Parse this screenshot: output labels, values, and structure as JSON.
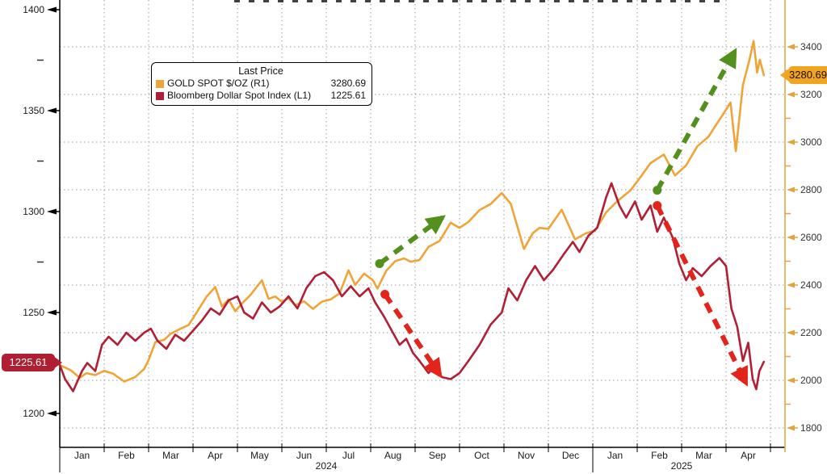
{
  "chart_data": {
    "type": "line",
    "title": "",
    "legend": {
      "title": "Last Price",
      "items": [
        {
          "name": "GOLD SPOT $/OZ  (R1)",
          "last": "3280.69",
          "color": "#F0A437"
        },
        {
          "name": "Bloomberg Dollar Spot Index  (L1)",
          "last": "1225.61",
          "color": "#B01F35"
        }
      ]
    },
    "x_axis": {
      "months": [
        "Jan",
        "Feb",
        "Mar",
        "Apr",
        "May",
        "Jun",
        "Jul",
        "Aug",
        "Sep",
        "Oct",
        "Nov",
        "Dec",
        "Jan",
        "Feb",
        "Mar",
        "Apr"
      ],
      "years": [
        {
          "label": "2024",
          "start_month_index": 0
        },
        {
          "label": "2025",
          "start_month_index": 12
        }
      ]
    },
    "axes": {
      "left": {
        "series": "Bloomberg Dollar Spot Index (L1)",
        "major_ticks": [
          1400,
          1350,
          1300,
          1250,
          1200
        ],
        "minor_step": 25,
        "last_price_badge": "1225.61",
        "badge_color": "#B01E32",
        "axis_color": "#000000",
        "label_color": "#1a1a1a"
      },
      "right": {
        "series": "GOLD SPOT $/OZ (R1)",
        "major_ticks": [
          3400,
          3200,
          3000,
          2800,
          2600,
          2400,
          2200,
          2000,
          1800
        ],
        "minor_step": 100,
        "last_price_badge": "3280.69",
        "badge_color": "#F0A41F",
        "axis_color": "#E2A23C",
        "label_color": "#333333"
      }
    },
    "grid": {
      "on": true,
      "color": "#9a9a9a",
      "style": "dotted"
    },
    "series": [
      {
        "id": "gold",
        "name": "GOLD SPOT $/OZ",
        "axis": "right",
        "color": "#F0A437",
        "last": 3280.69,
        "points": [
          [
            0,
            2064
          ],
          [
            0.25,
            2042
          ],
          [
            0.45,
            2010
          ],
          [
            0.6,
            2030
          ],
          [
            0.8,
            2022
          ],
          [
            1.0,
            2040
          ],
          [
            1.2,
            2028
          ],
          [
            1.45,
            1995
          ],
          [
            1.7,
            2014
          ],
          [
            1.9,
            2048
          ],
          [
            2.0,
            2085
          ],
          [
            2.15,
            2160
          ],
          [
            2.35,
            2170
          ],
          [
            2.5,
            2196
          ],
          [
            2.7,
            2215
          ],
          [
            2.9,
            2232
          ],
          [
            3.1,
            2290
          ],
          [
            3.3,
            2350
          ],
          [
            3.5,
            2392
          ],
          [
            3.65,
            2310
          ],
          [
            3.8,
            2340
          ],
          [
            3.95,
            2290
          ],
          [
            4.1,
            2322
          ],
          [
            4.3,
            2360
          ],
          [
            4.55,
            2420
          ],
          [
            4.7,
            2342
          ],
          [
            4.85,
            2352
          ],
          [
            5.0,
            2330
          ],
          [
            5.15,
            2345
          ],
          [
            5.3,
            2315
          ],
          [
            5.5,
            2332
          ],
          [
            5.7,
            2300
          ],
          [
            5.9,
            2330
          ],
          [
            6.1,
            2340
          ],
          [
            6.3,
            2365
          ],
          [
            6.5,
            2462
          ],
          [
            6.65,
            2400
          ],
          [
            6.85,
            2448
          ],
          [
            7.05,
            2420
          ],
          [
            7.15,
            2385
          ],
          [
            7.35,
            2460
          ],
          [
            7.55,
            2500
          ],
          [
            7.75,
            2512
          ],
          [
            7.9,
            2498
          ],
          [
            8.1,
            2505
          ],
          [
            8.3,
            2560
          ],
          [
            8.55,
            2585
          ],
          [
            8.8,
            2662
          ],
          [
            9.0,
            2640
          ],
          [
            9.2,
            2665
          ],
          [
            9.45,
            2715
          ],
          [
            9.7,
            2740
          ],
          [
            9.95,
            2786
          ],
          [
            10.15,
            2742
          ],
          [
            10.45,
            2552
          ],
          [
            10.65,
            2618
          ],
          [
            10.8,
            2640
          ],
          [
            11.0,
            2636
          ],
          [
            11.3,
            2716
          ],
          [
            11.6,
            2592
          ],
          [
            11.85,
            2618
          ],
          [
            12.05,
            2628
          ],
          [
            12.3,
            2705
          ],
          [
            12.55,
            2752
          ],
          [
            12.85,
            2798
          ],
          [
            13.1,
            2860
          ],
          [
            13.3,
            2912
          ],
          [
            13.6,
            2948
          ],
          [
            13.85,
            2860
          ],
          [
            14.1,
            2902
          ],
          [
            14.35,
            2982
          ],
          [
            14.6,
            3022
          ],
          [
            14.95,
            3122
          ],
          [
            15.1,
            3166
          ],
          [
            15.22,
            2962
          ],
          [
            15.38,
            3240
          ],
          [
            15.52,
            3340
          ],
          [
            15.62,
            3424
          ],
          [
            15.7,
            3292
          ],
          [
            15.76,
            3346
          ],
          [
            15.85,
            3280.69
          ]
        ]
      },
      {
        "id": "dollar",
        "name": "Bloomberg Dollar Spot Index",
        "axis": "left",
        "color": "#B01F35",
        "last": 1225.61,
        "points": [
          [
            0,
            1224
          ],
          [
            0.12,
            1217
          ],
          [
            0.3,
            1211
          ],
          [
            0.5,
            1221
          ],
          [
            0.62,
            1225
          ],
          [
            0.8,
            1221
          ],
          [
            0.95,
            1234
          ],
          [
            1.1,
            1238
          ],
          [
            1.3,
            1234
          ],
          [
            1.5,
            1240
          ],
          [
            1.7,
            1236
          ],
          [
            1.9,
            1240
          ],
          [
            2.05,
            1242
          ],
          [
            2.2,
            1236
          ],
          [
            2.4,
            1232
          ],
          [
            2.6,
            1239
          ],
          [
            2.8,
            1236
          ],
          [
            3.0,
            1241
          ],
          [
            3.2,
            1246
          ],
          [
            3.4,
            1252
          ],
          [
            3.6,
            1249
          ],
          [
            3.8,
            1256
          ],
          [
            4.0,
            1258
          ],
          [
            4.15,
            1250
          ],
          [
            4.35,
            1247
          ],
          [
            4.55,
            1255
          ],
          [
            4.75,
            1250
          ],
          [
            4.95,
            1253
          ],
          [
            5.15,
            1258
          ],
          [
            5.35,
            1252
          ],
          [
            5.55,
            1262
          ],
          [
            5.75,
            1268
          ],
          [
            5.95,
            1270
          ],
          [
            6.15,
            1266
          ],
          [
            6.35,
            1258
          ],
          [
            6.55,
            1263
          ],
          [
            6.75,
            1258
          ],
          [
            6.95,
            1262
          ],
          [
            7.1,
            1255
          ],
          [
            7.3,
            1248
          ],
          [
            7.5,
            1240
          ],
          [
            7.65,
            1234
          ],
          [
            7.8,
            1237
          ],
          [
            7.95,
            1230
          ],
          [
            8.1,
            1226
          ],
          [
            8.3,
            1220
          ],
          [
            8.45,
            1224
          ],
          [
            8.6,
            1218
          ],
          [
            8.8,
            1217
          ],
          [
            9.0,
            1220
          ],
          [
            9.2,
            1226
          ],
          [
            9.45,
            1234
          ],
          [
            9.7,
            1244
          ],
          [
            9.95,
            1250
          ],
          [
            10.1,
            1262
          ],
          [
            10.3,
            1256
          ],
          [
            10.5,
            1266
          ],
          [
            10.7,
            1273
          ],
          [
            10.9,
            1266
          ],
          [
            11.1,
            1271
          ],
          [
            11.35,
            1279
          ],
          [
            11.55,
            1285
          ],
          [
            11.7,
            1280
          ],
          [
            11.9,
            1288
          ],
          [
            12.1,
            1292
          ],
          [
            12.3,
            1307
          ],
          [
            12.42,
            1314
          ],
          [
            12.6,
            1303
          ],
          [
            12.75,
            1297
          ],
          [
            12.95,
            1305
          ],
          [
            13.1,
            1296
          ],
          [
            13.3,
            1303
          ],
          [
            13.45,
            1290
          ],
          [
            13.6,
            1297
          ],
          [
            13.8,
            1287
          ],
          [
            13.95,
            1274
          ],
          [
            14.1,
            1266
          ],
          [
            14.25,
            1272
          ],
          [
            14.45,
            1268
          ],
          [
            14.65,
            1273
          ],
          [
            14.85,
            1277
          ],
          [
            15.0,
            1273
          ],
          [
            15.12,
            1252
          ],
          [
            15.25,
            1243
          ],
          [
            15.38,
            1226
          ],
          [
            15.5,
            1235
          ],
          [
            15.6,
            1217
          ],
          [
            15.68,
            1212
          ],
          [
            15.75,
            1221
          ],
          [
            15.85,
            1225.61
          ]
        ]
      }
    ],
    "annotations": [
      {
        "id": "gold-up-trend-2024",
        "kind": "trend-arrow",
        "direction": "up",
        "color": "#53901D",
        "axis": "right",
        "from": [
          7.2,
          2490
        ],
        "to": [
          8.62,
          2684
        ]
      },
      {
        "id": "dollar-down-trend-2024",
        "kind": "trend-arrow",
        "direction": "down",
        "color": "#E3241B",
        "axis": "left",
        "from": [
          7.32,
          1259
        ],
        "to": [
          8.56,
          1219
        ]
      },
      {
        "id": "gold-up-trend-2025",
        "kind": "trend-arrow",
        "direction": "up",
        "color": "#53901D",
        "axis": "right",
        "from": [
          13.45,
          2798
        ],
        "to": [
          15.2,
          3382
        ]
      },
      {
        "id": "dollar-down-trend-2025",
        "kind": "trend-arrow",
        "direction": "down",
        "color": "#E3241B",
        "axis": "left",
        "from": [
          13.45,
          1303
        ],
        "to": [
          15.45,
          1215
        ]
      }
    ]
  }
}
